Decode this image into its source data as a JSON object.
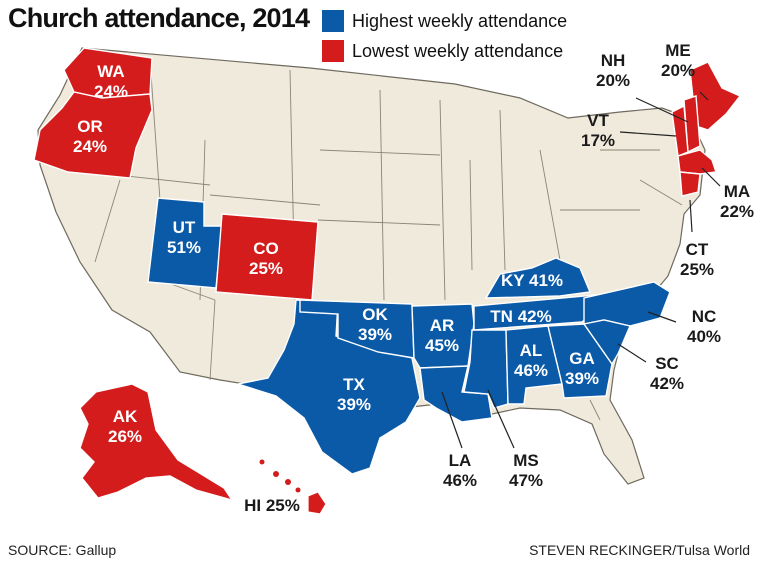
{
  "title": "Church attendance, 2014",
  "legend": {
    "highest": {
      "label": "Highest weekly attendance",
      "color": "#0a5aa8"
    },
    "lowest": {
      "label": "Lowest weekly attendance",
      "color": "#d41c1c"
    }
  },
  "base_color": "#efeadb",
  "states": {
    "WA": {
      "abbr": "WA",
      "value": "24%",
      "group": "lowest"
    },
    "OR": {
      "abbr": "OR",
      "value": "24%",
      "group": "lowest"
    },
    "UT": {
      "abbr": "UT",
      "value": "51%",
      "group": "highest"
    },
    "CO": {
      "abbr": "CO",
      "value": "25%",
      "group": "lowest"
    },
    "OK": {
      "abbr": "OK",
      "value": "39%",
      "group": "highest"
    },
    "TX": {
      "abbr": "TX",
      "value": "39%",
      "group": "highest"
    },
    "AR": {
      "abbr": "AR",
      "value": "45%",
      "group": "highest"
    },
    "KY": {
      "abbr": "KY",
      "value": "41%",
      "group": "highest"
    },
    "TN": {
      "abbr": "TN",
      "value": "42%",
      "group": "highest"
    },
    "AL": {
      "abbr": "AL",
      "value": "46%",
      "group": "highest"
    },
    "GA": {
      "abbr": "GA",
      "value": "39%",
      "group": "highest"
    },
    "LA": {
      "abbr": "LA",
      "value": "46%",
      "group": "highest"
    },
    "MS": {
      "abbr": "MS",
      "value": "47%",
      "group": "highest"
    },
    "SC": {
      "abbr": "SC",
      "value": "42%",
      "group": "highest"
    },
    "NC": {
      "abbr": "NC",
      "value": "40%",
      "group": "highest"
    },
    "AK": {
      "abbr": "AK",
      "value": "26%",
      "group": "lowest"
    },
    "HI": {
      "abbr": "HI",
      "value": "25%",
      "group": "lowest"
    },
    "ME": {
      "abbr": "ME",
      "value": "20%",
      "group": "lowest"
    },
    "NH": {
      "abbr": "NH",
      "value": "20%",
      "group": "lowest"
    },
    "VT": {
      "abbr": "VT",
      "value": "17%",
      "group": "lowest"
    },
    "MA": {
      "abbr": "MA",
      "value": "22%",
      "group": "lowest"
    },
    "CT": {
      "abbr": "CT",
      "value": "25%",
      "group": "lowest"
    }
  },
  "source": "SOURCE: Gallup",
  "credit": "STEVEN RECKINGER/Tulsa World"
}
